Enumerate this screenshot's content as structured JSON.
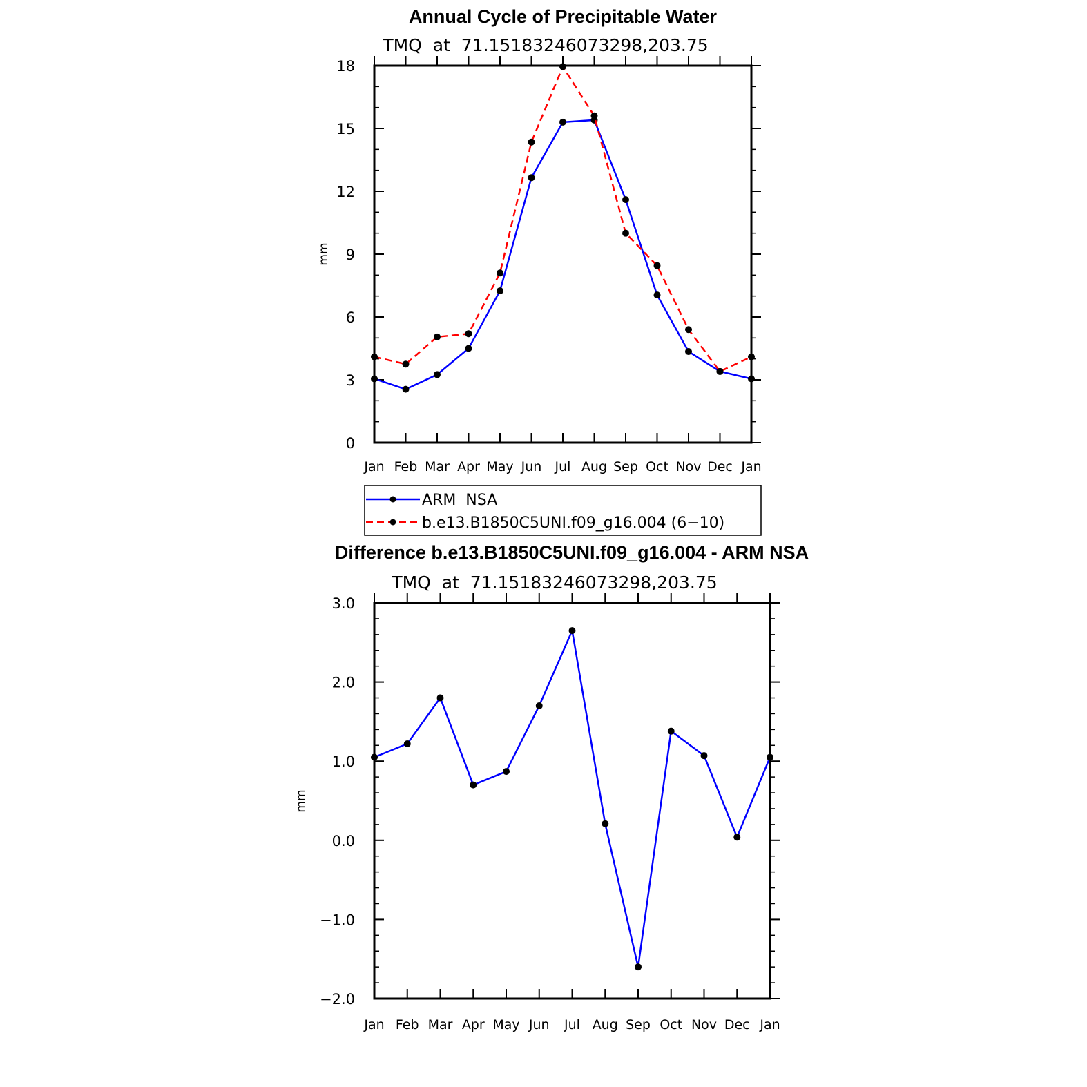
{
  "chart_data": [
    {
      "type": "line",
      "title": "Annual Cycle of Precipitable Water",
      "subtitle": "TMQ  at  71.15183246073298,203.75",
      "ylabel": "mm",
      "xlabel": "",
      "ylim": [
        0,
        18
      ],
      "yticks": [
        0,
        3,
        6,
        9,
        12,
        15,
        18
      ],
      "ytick_labels": [
        "0",
        "3",
        "6",
        "9",
        "12",
        "15",
        "18"
      ],
      "categories": [
        "Jan",
        "Feb",
        "Mar",
        "Apr",
        "May",
        "Jun",
        "Jul",
        "Aug",
        "Sep",
        "Oct",
        "Nov",
        "Dec",
        "Jan"
      ],
      "grid": false,
      "legend_position": "bottom",
      "series": [
        {
          "name": "ARM  NSA",
          "color": "#0000ff",
          "dash": "solid",
          "values": [
            3.05,
            2.55,
            3.25,
            4.5,
            7.25,
            12.65,
            15.3,
            15.4,
            11.6,
            7.05,
            4.35,
            3.4,
            3.05
          ]
        },
        {
          "name": "b.e13.B1850C5UNI.f09_g16.004 (6−10)",
          "color": "#ff0000",
          "dash": "dashed",
          "values": [
            4.1,
            3.75,
            5.05,
            5.2,
            8.1,
            14.35,
            17.95,
            15.6,
            10.0,
            8.45,
            5.4,
            3.4,
            4.1
          ]
        }
      ]
    },
    {
      "type": "line",
      "title": "Difference b.e13.B1850C5UNI.f09_g16.004 - ARM NSA",
      "subtitle": "TMQ  at  71.15183246073298,203.75",
      "ylabel": "mm",
      "xlabel": "",
      "ylim": [
        -2.0,
        3.0
      ],
      "yticks": [
        -2.0,
        -1.0,
        0.0,
        1.0,
        2.0,
        3.0
      ],
      "ytick_labels": [
        "−2.0",
        "−1.0",
        "0.0",
        "1.0",
        "2.0",
        "3.0"
      ],
      "categories": [
        "Jan",
        "Feb",
        "Mar",
        "Apr",
        "May",
        "Jun",
        "Jul",
        "Aug",
        "Sep",
        "Oct",
        "Nov",
        "Dec",
        "Jan"
      ],
      "grid": false,
      "series": [
        {
          "name": "",
          "color": "#0000ff",
          "dash": "solid",
          "values": [
            1.05,
            1.22,
            1.8,
            0.7,
            0.87,
            1.7,
            2.65,
            0.21,
            -1.6,
            1.38,
            1.07,
            0.04,
            1.05
          ]
        }
      ]
    }
  ]
}
